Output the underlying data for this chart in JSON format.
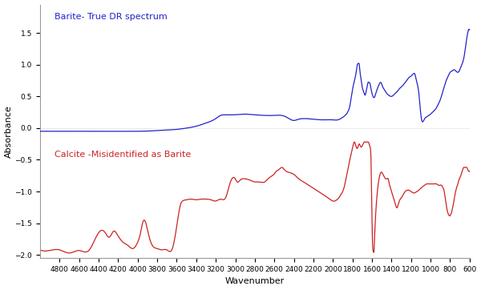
{
  "xlabel": "Wavenumber",
  "ylabel": "Absorbance",
  "background_color": "#ffffff",
  "blue_label": "Barite- True DR spectrum",
  "red_label": "Calcite -Misidentified as Barite",
  "blue_color": "#2222cc",
  "red_color": "#cc2222",
  "x_min": 600,
  "x_max": 5000,
  "y_min": -2.05,
  "y_max": 1.95,
  "x_ticks": [
    4800,
    4600,
    4400,
    4200,
    4000,
    3800,
    3600,
    3400,
    3200,
    3000,
    2800,
    2600,
    2400,
    2200,
    2000,
    1800,
    1600,
    1400,
    1200,
    1000,
    800,
    600
  ],
  "blue_keypoints": [
    [
      5000,
      -0.05
    ],
    [
      4800,
      -0.05
    ],
    [
      4600,
      -0.05
    ],
    [
      4400,
      -0.05
    ],
    [
      4200,
      -0.05
    ],
    [
      4000,
      -0.05
    ],
    [
      3800,
      -0.04
    ],
    [
      3700,
      -0.03
    ],
    [
      3600,
      -0.02
    ],
    [
      3500,
      0.0
    ],
    [
      3400,
      0.03
    ],
    [
      3300,
      0.08
    ],
    [
      3200,
      0.15
    ],
    [
      3150,
      0.2
    ],
    [
      3100,
      0.21
    ],
    [
      3000,
      0.21
    ],
    [
      2900,
      0.22
    ],
    [
      2800,
      0.21
    ],
    [
      2700,
      0.2
    ],
    [
      2600,
      0.2
    ],
    [
      2500,
      0.19
    ],
    [
      2450,
      0.15
    ],
    [
      2400,
      0.12
    ],
    [
      2350,
      0.14
    ],
    [
      2300,
      0.15
    ],
    [
      2200,
      0.14
    ],
    [
      2100,
      0.13
    ],
    [
      2000,
      0.13
    ],
    [
      1950,
      0.13
    ],
    [
      1900,
      0.17
    ],
    [
      1850,
      0.25
    ],
    [
      1820,
      0.4
    ],
    [
      1800,
      0.6
    ],
    [
      1780,
      0.75
    ],
    [
      1760,
      0.9
    ],
    [
      1750,
      1.0
    ],
    [
      1740,
      1.02
    ],
    [
      1730,
      1.0
    ],
    [
      1720,
      0.85
    ],
    [
      1710,
      0.75
    ],
    [
      1700,
      0.65
    ],
    [
      1680,
      0.55
    ],
    [
      1670,
      0.52
    ],
    [
      1660,
      0.58
    ],
    [
      1650,
      0.65
    ],
    [
      1640,
      0.72
    ],
    [
      1630,
      0.72
    ],
    [
      1620,
      0.7
    ],
    [
      1610,
      0.62
    ],
    [
      1600,
      0.55
    ],
    [
      1590,
      0.5
    ],
    [
      1580,
      0.48
    ],
    [
      1570,
      0.5
    ],
    [
      1560,
      0.55
    ],
    [
      1550,
      0.6
    ],
    [
      1530,
      0.68
    ],
    [
      1510,
      0.72
    ],
    [
      1490,
      0.65
    ],
    [
      1470,
      0.6
    ],
    [
      1450,
      0.55
    ],
    [
      1430,
      0.52
    ],
    [
      1400,
      0.5
    ],
    [
      1380,
      0.52
    ],
    [
      1360,
      0.55
    ],
    [
      1340,
      0.58
    ],
    [
      1320,
      0.62
    ],
    [
      1300,
      0.65
    ],
    [
      1280,
      0.68
    ],
    [
      1260,
      0.72
    ],
    [
      1240,
      0.76
    ],
    [
      1220,
      0.8
    ],
    [
      1200,
      0.82
    ],
    [
      1180,
      0.85
    ],
    [
      1160,
      0.85
    ],
    [
      1140,
      0.72
    ],
    [
      1120,
      0.55
    ],
    [
      1110,
      0.38
    ],
    [
      1100,
      0.22
    ],
    [
      1090,
      0.12
    ],
    [
      1080,
      0.1
    ],
    [
      1070,
      0.12
    ],
    [
      1060,
      0.15
    ],
    [
      1040,
      0.18
    ],
    [
      1020,
      0.2
    ],
    [
      1000,
      0.22
    ],
    [
      980,
      0.25
    ],
    [
      960,
      0.28
    ],
    [
      940,
      0.32
    ],
    [
      920,
      0.38
    ],
    [
      900,
      0.45
    ],
    [
      880,
      0.55
    ],
    [
      860,
      0.65
    ],
    [
      840,
      0.75
    ],
    [
      820,
      0.82
    ],
    [
      800,
      0.88
    ],
    [
      780,
      0.9
    ],
    [
      760,
      0.92
    ],
    [
      740,
      0.9
    ],
    [
      720,
      0.88
    ],
    [
      700,
      0.92
    ],
    [
      680,
      1.0
    ],
    [
      660,
      1.1
    ],
    [
      640,
      1.3
    ],
    [
      620,
      1.5
    ],
    [
      600,
      1.55
    ]
  ],
  "red_keypoints": [
    [
      5000,
      -1.92
    ],
    [
      4900,
      -1.93
    ],
    [
      4800,
      -1.92
    ],
    [
      4750,
      -1.95
    ],
    [
      4700,
      -1.97
    ],
    [
      4650,
      -1.95
    ],
    [
      4600,
      -1.93
    ],
    [
      4500,
      -1.93
    ],
    [
      4400,
      -1.65
    ],
    [
      4350,
      -1.62
    ],
    [
      4320,
      -1.68
    ],
    [
      4300,
      -1.72
    ],
    [
      4270,
      -1.68
    ],
    [
      4250,
      -1.63
    ],
    [
      4200,
      -1.7
    ],
    [
      4150,
      -1.8
    ],
    [
      4100,
      -1.85
    ],
    [
      4050,
      -1.9
    ],
    [
      4000,
      -1.8
    ],
    [
      3970,
      -1.65
    ],
    [
      3950,
      -1.5
    ],
    [
      3920,
      -1.48
    ],
    [
      3900,
      -1.6
    ],
    [
      3870,
      -1.78
    ],
    [
      3850,
      -1.85
    ],
    [
      3800,
      -1.9
    ],
    [
      3750,
      -1.92
    ],
    [
      3700,
      -1.92
    ],
    [
      3650,
      -1.92
    ],
    [
      3600,
      -1.55
    ],
    [
      3560,
      -1.2
    ],
    [
      3540,
      -1.15
    ],
    [
      3500,
      -1.13
    ],
    [
      3450,
      -1.12
    ],
    [
      3400,
      -1.13
    ],
    [
      3350,
      -1.12
    ],
    [
      3300,
      -1.12
    ],
    [
      3250,
      -1.13
    ],
    [
      3200,
      -1.15
    ],
    [
      3150,
      -1.12
    ],
    [
      3100,
      -1.1
    ],
    [
      3050,
      -0.85
    ],
    [
      3000,
      -0.8
    ],
    [
      2980,
      -0.85
    ],
    [
      2950,
      -0.82
    ],
    [
      2900,
      -0.8
    ],
    [
      2850,
      -0.82
    ],
    [
      2800,
      -0.85
    ],
    [
      2750,
      -0.85
    ],
    [
      2700,
      -0.85
    ],
    [
      2650,
      -0.78
    ],
    [
      2600,
      -0.72
    ],
    [
      2580,
      -0.68
    ],
    [
      2550,
      -0.65
    ],
    [
      2520,
      -0.62
    ],
    [
      2500,
      -0.65
    ],
    [
      2480,
      -0.68
    ],
    [
      2450,
      -0.7
    ],
    [
      2400,
      -0.73
    ],
    [
      2350,
      -0.8
    ],
    [
      2300,
      -0.85
    ],
    [
      2250,
      -0.9
    ],
    [
      2200,
      -0.95
    ],
    [
      2150,
      -1.0
    ],
    [
      2100,
      -1.05
    ],
    [
      2050,
      -1.1
    ],
    [
      2000,
      -1.15
    ],
    [
      1980,
      -1.15
    ],
    [
      1960,
      -1.13
    ],
    [
      1940,
      -1.1
    ],
    [
      1920,
      -1.05
    ],
    [
      1900,
      -1.0
    ],
    [
      1880,
      -0.9
    ],
    [
      1860,
      -0.75
    ],
    [
      1840,
      -0.6
    ],
    [
      1820,
      -0.45
    ],
    [
      1800,
      -0.32
    ],
    [
      1790,
      -0.25
    ],
    [
      1780,
      -0.22
    ],
    [
      1770,
      -0.25
    ],
    [
      1760,
      -0.3
    ],
    [
      1750,
      -0.32
    ],
    [
      1740,
      -0.28
    ],
    [
      1730,
      -0.25
    ],
    [
      1720,
      -0.28
    ],
    [
      1710,
      -0.3
    ],
    [
      1700,
      -0.28
    ],
    [
      1690,
      -0.25
    ],
    [
      1680,
      -0.22
    ],
    [
      1670,
      -0.22
    ],
    [
      1660,
      -0.22
    ],
    [
      1640,
      -0.22
    ],
    [
      1630,
      -0.24
    ],
    [
      1620,
      -0.3
    ],
    [
      1610,
      -0.5
    ],
    [
      1605,
      -0.9
    ],
    [
      1600,
      -1.4
    ],
    [
      1595,
      -1.8
    ],
    [
      1590,
      -1.93
    ],
    [
      1585,
      -1.95
    ],
    [
      1580,
      -1.95
    ],
    [
      1575,
      -1.8
    ],
    [
      1570,
      -1.6
    ],
    [
      1560,
      -1.3
    ],
    [
      1545,
      -1.0
    ],
    [
      1530,
      -0.82
    ],
    [
      1510,
      -0.7
    ],
    [
      1490,
      -0.72
    ],
    [
      1470,
      -0.78
    ],
    [
      1450,
      -0.8
    ],
    [
      1430,
      -0.82
    ],
    [
      1420,
      -0.9
    ],
    [
      1410,
      -0.95
    ],
    [
      1400,
      -1.0
    ],
    [
      1390,
      -1.05
    ],
    [
      1380,
      -1.1
    ],
    [
      1370,
      -1.15
    ],
    [
      1360,
      -1.2
    ],
    [
      1350,
      -1.25
    ],
    [
      1340,
      -1.25
    ],
    [
      1320,
      -1.15
    ],
    [
      1300,
      -1.1
    ],
    [
      1280,
      -1.05
    ],
    [
      1260,
      -1.0
    ],
    [
      1240,
      -0.98
    ],
    [
      1220,
      -0.98
    ],
    [
      1200,
      -1.0
    ],
    [
      1180,
      -1.02
    ],
    [
      1160,
      -1.02
    ],
    [
      1140,
      -1.0
    ],
    [
      1120,
      -0.98
    ],
    [
      1100,
      -0.95
    ],
    [
      1080,
      -0.92
    ],
    [
      1060,
      -0.9
    ],
    [
      1040,
      -0.88
    ],
    [
      1020,
      -0.88
    ],
    [
      1000,
      -0.88
    ],
    [
      980,
      -0.88
    ],
    [
      960,
      -0.88
    ],
    [
      940,
      -0.88
    ],
    [
      920,
      -0.9
    ],
    [
      900,
      -0.9
    ],
    [
      890,
      -0.9
    ],
    [
      880,
      -0.92
    ],
    [
      870,
      -0.95
    ],
    [
      860,
      -1.0
    ],
    [
      850,
      -1.1
    ],
    [
      840,
      -1.2
    ],
    [
      830,
      -1.3
    ],
    [
      820,
      -1.35
    ],
    [
      810,
      -1.38
    ],
    [
      800,
      -1.38
    ],
    [
      790,
      -1.35
    ],
    [
      780,
      -1.3
    ],
    [
      770,
      -1.22
    ],
    [
      760,
      -1.15
    ],
    [
      750,
      -1.05
    ],
    [
      740,
      -0.98
    ],
    [
      730,
      -0.92
    ],
    [
      720,
      -0.88
    ],
    [
      710,
      -0.82
    ],
    [
      700,
      -0.78
    ],
    [
      690,
      -0.75
    ],
    [
      680,
      -0.7
    ],
    [
      670,
      -0.65
    ],
    [
      660,
      -0.62
    ],
    [
      650,
      -0.62
    ],
    [
      640,
      -0.62
    ],
    [
      630,
      -0.62
    ],
    [
      620,
      -0.65
    ],
    [
      610,
      -0.68
    ],
    [
      600,
      -0.68
    ]
  ]
}
